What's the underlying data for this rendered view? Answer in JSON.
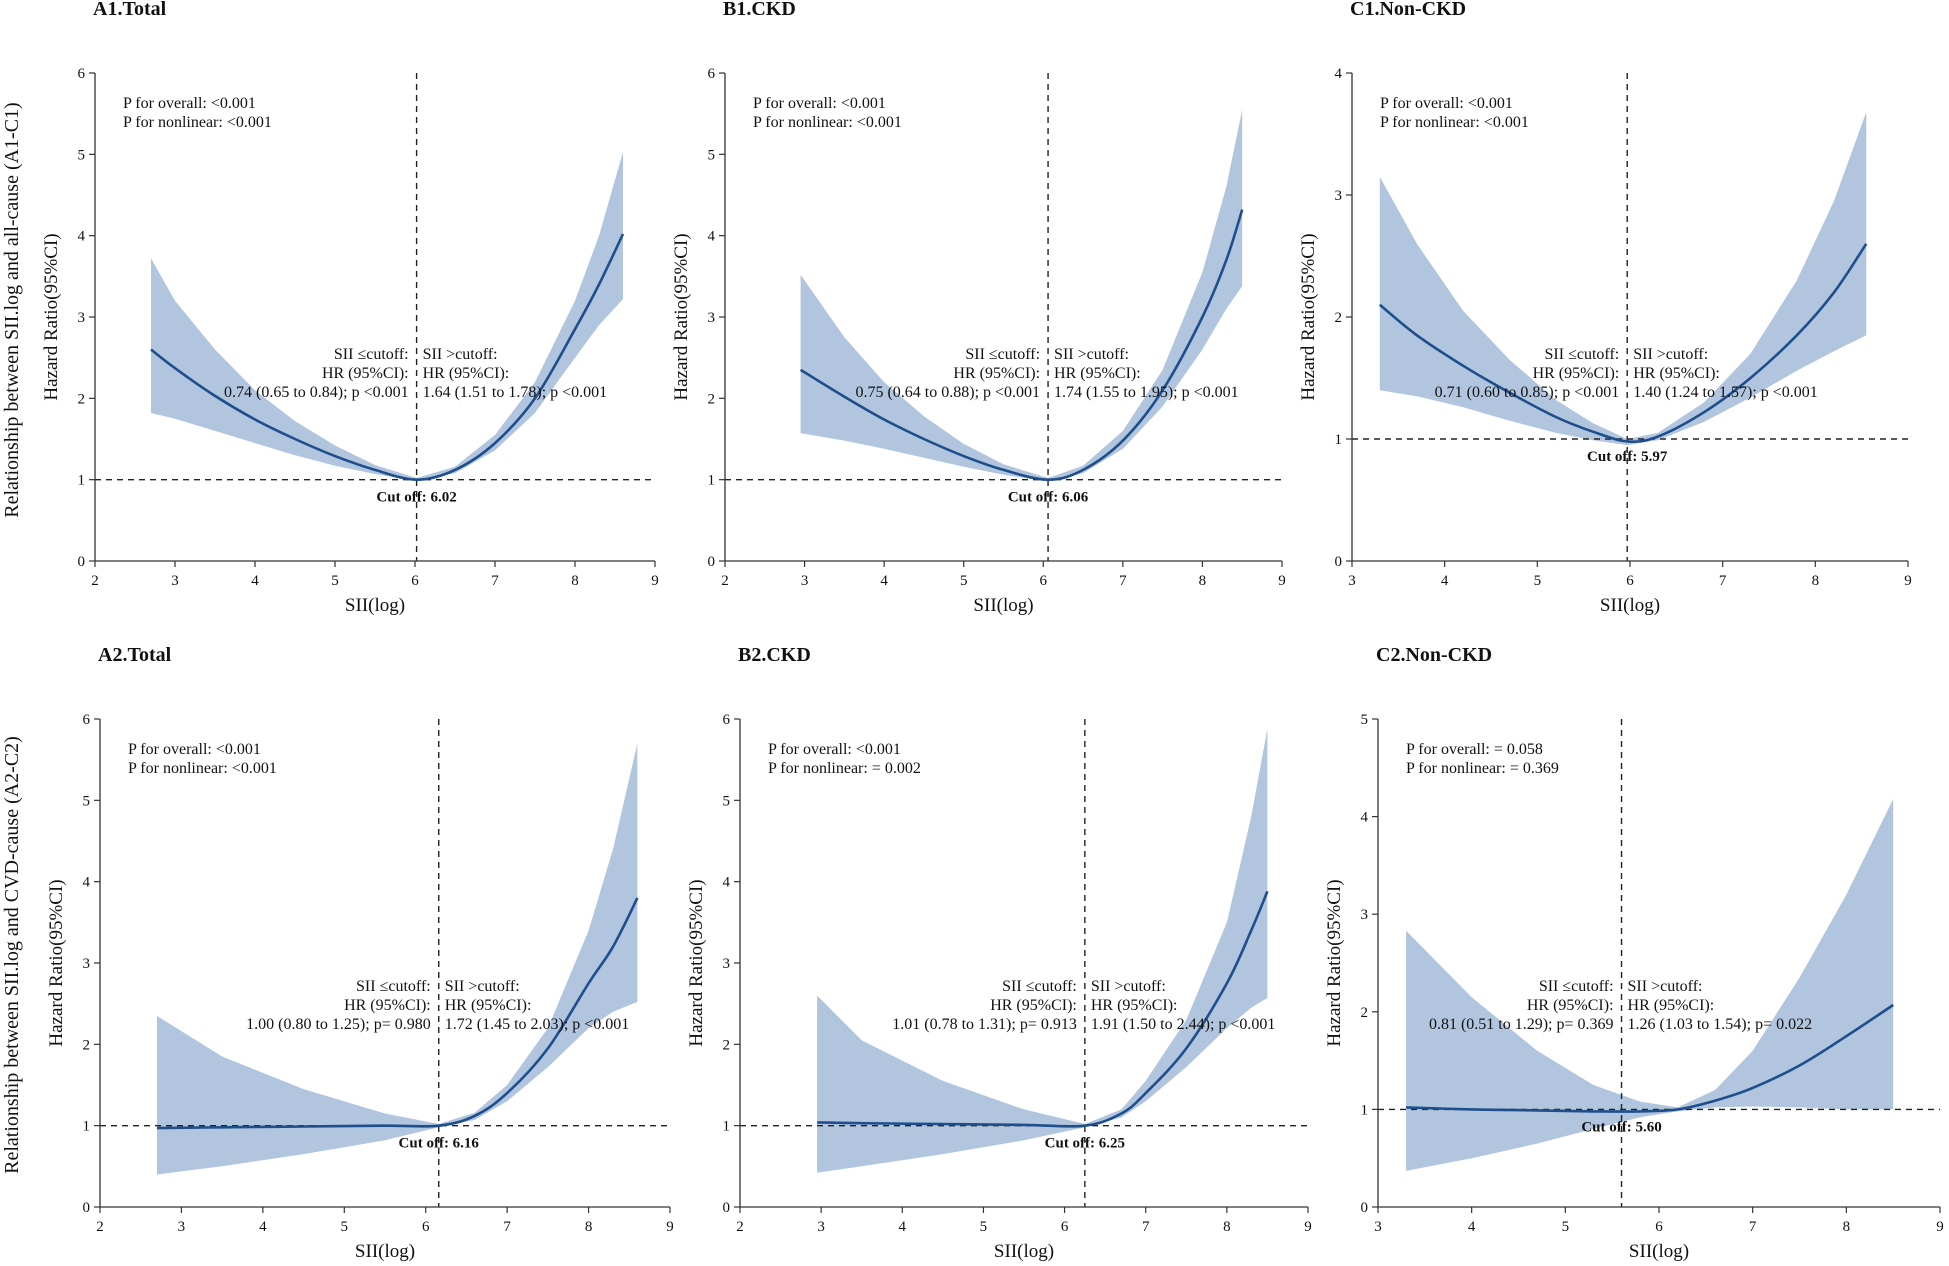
{
  "row_labels": {
    "top": "Relationship between SII.log and all-cause (A1-C1)",
    "bottom": "Relationship between SII.log and CVD-cause (A2-C2)"
  },
  "colors": {
    "band": "#b1c5de",
    "line": "#1f4e8c",
    "axis": "#333333"
  },
  "chart_data": [
    {
      "type": "line",
      "title": "A1.Total",
      "xlabel": "SII(log)",
      "ylabel": "Hazard Ratio(95%CI)",
      "xlim": [
        2,
        9
      ],
      "ylim": [
        0,
        6
      ],
      "xticks": [
        "2",
        "3",
        "4",
        "5",
        "6",
        "7",
        "8",
        "9"
      ],
      "yticks": [
        "0",
        "1",
        "2",
        "3",
        "4",
        "5",
        "6"
      ],
      "cutoff": 6.02,
      "cut_label": "Cut off: 6.02",
      "p_overall": "P for overall:  <0.001",
      "p_nonlinear": "P for nonlinear:  <0.001",
      "left_head": [
        "SII ≤cutoff:",
        "HR (95%CI):"
      ],
      "left_stat": "0.74 (0.65 to 0.84); p <0.001",
      "right_head": [
        "SII >cutoff:",
        "HR (95%CI):"
      ],
      "right_stat": "1.64 (1.51 to 1.78); p <0.001",
      "series": [
        {
          "name": "HR",
          "x": [
            2.7,
            3.0,
            3.5,
            4.0,
            4.5,
            5.0,
            5.5,
            6.02,
            6.5,
            7.0,
            7.5,
            8.0,
            8.3,
            8.6
          ],
          "y": [
            2.6,
            2.37,
            2.03,
            1.74,
            1.5,
            1.29,
            1.12,
            1.0,
            1.12,
            1.45,
            2.0,
            2.85,
            3.4,
            4.02
          ]
        },
        {
          "name": "Lower 95% CI",
          "x": [
            2.7,
            3.0,
            3.5,
            4.0,
            4.5,
            5.0,
            5.5,
            6.02,
            6.5,
            7.0,
            7.5,
            8.0,
            8.3,
            8.6
          ],
          "y": [
            1.82,
            1.75,
            1.6,
            1.45,
            1.3,
            1.17,
            1.07,
            0.98,
            1.08,
            1.36,
            1.82,
            2.5,
            2.9,
            3.22
          ]
        },
        {
          "name": "Upper 95% CI",
          "x": [
            2.7,
            3.0,
            3.5,
            4.0,
            4.5,
            5.0,
            5.5,
            6.02,
            6.5,
            7.0,
            7.5,
            8.0,
            8.3,
            8.6
          ],
          "y": [
            3.72,
            3.2,
            2.6,
            2.1,
            1.72,
            1.42,
            1.18,
            1.02,
            1.16,
            1.55,
            2.2,
            3.2,
            4.0,
            5.03
          ]
        }
      ]
    },
    {
      "type": "line",
      "title": "B1.CKD",
      "xlabel": "SII(log)",
      "ylabel": "Hazard Ratio(95%CI)",
      "xlim": [
        2,
        9
      ],
      "ylim": [
        0,
        6
      ],
      "xticks": [
        "2",
        "3",
        "4",
        "5",
        "6",
        "7",
        "8",
        "9"
      ],
      "yticks": [
        "0",
        "1",
        "2",
        "3",
        "4",
        "5",
        "6"
      ],
      "cutoff": 6.06,
      "cut_label": "Cut off: 6.06",
      "p_overall": "P for overall:  <0.001",
      "p_nonlinear": "P for nonlinear:  <0.001",
      "left_head": [
        "SII ≤cutoff:",
        "HR (95%CI):"
      ],
      "left_stat": "0.75 (0.64 to 0.88); p <0.001",
      "right_head": [
        "SII >cutoff:",
        "HR (95%CI):"
      ],
      "right_stat": "1.74 (1.55 to 1.95); p <0.001",
      "series": [
        {
          "name": "HR",
          "x": [
            2.95,
            3.5,
            4.0,
            4.5,
            5.0,
            5.5,
            6.06,
            6.5,
            7.0,
            7.5,
            8.0,
            8.3,
            8.5
          ],
          "y": [
            2.35,
            2.02,
            1.74,
            1.5,
            1.29,
            1.12,
            1.0,
            1.12,
            1.48,
            2.1,
            3.0,
            3.7,
            4.32
          ]
        },
        {
          "name": "Lower 95% CI",
          "x": [
            2.95,
            3.5,
            4.0,
            4.5,
            5.0,
            5.5,
            6.06,
            6.5,
            7.0,
            7.5,
            8.0,
            8.3,
            8.5
          ],
          "y": [
            1.57,
            1.48,
            1.38,
            1.27,
            1.16,
            1.06,
            0.98,
            1.08,
            1.38,
            1.9,
            2.6,
            3.1,
            3.38
          ]
        },
        {
          "name": "Upper 95% CI",
          "x": [
            2.95,
            3.5,
            4.0,
            4.5,
            5.0,
            5.5,
            6.06,
            6.5,
            7.0,
            7.5,
            8.0,
            8.3,
            8.5
          ],
          "y": [
            3.52,
            2.75,
            2.2,
            1.78,
            1.44,
            1.19,
            1.02,
            1.17,
            1.6,
            2.35,
            3.55,
            4.6,
            5.55
          ]
        }
      ]
    },
    {
      "type": "line",
      "title": "C1.Non-CKD",
      "xlabel": "SII(log)",
      "ylabel": "Hazard Ratio(95%CI)",
      "xlim": [
        3,
        9
      ],
      "ylim": [
        0,
        4
      ],
      "xticks": [
        "3",
        "4",
        "5",
        "6",
        "7",
        "8",
        "9"
      ],
      "yticks": [
        "0",
        "1",
        "2",
        "3",
        "4"
      ],
      "cutoff": 5.97,
      "cut_label": "Cut off: 5.97",
      "p_overall": "P for overall:  <0.001",
      "p_nonlinear": "P for nonlinear:  <0.001",
      "left_head": [
        "SII ≤cutoff:",
        "HR (95%CI):"
      ],
      "left_stat": "0.71 (0.60 to 0.85); p <0.001",
      "right_head": [
        "SII >cutoff:",
        "HR (95%CI):"
      ],
      "right_stat": "1.40 (1.24 to 1.57); p <0.001",
      "series": [
        {
          "name": "HR",
          "x": [
            3.3,
            3.7,
            4.2,
            4.7,
            5.2,
            5.6,
            5.97,
            6.3,
            6.8,
            7.3,
            7.8,
            8.2,
            8.55
          ],
          "y": [
            2.1,
            1.85,
            1.6,
            1.38,
            1.18,
            1.06,
            0.98,
            1.02,
            1.22,
            1.5,
            1.85,
            2.2,
            2.6
          ]
        },
        {
          "name": "Lower 95% CI",
          "x": [
            3.3,
            3.7,
            4.2,
            4.7,
            5.2,
            5.6,
            5.97,
            6.3,
            6.8,
            7.3,
            7.8,
            8.2,
            8.55
          ],
          "y": [
            1.4,
            1.35,
            1.26,
            1.15,
            1.05,
            0.99,
            0.95,
            0.99,
            1.14,
            1.34,
            1.56,
            1.72,
            1.85
          ]
        },
        {
          "name": "Upper 95% CI",
          "x": [
            3.3,
            3.7,
            4.2,
            4.7,
            5.2,
            5.6,
            5.97,
            6.3,
            6.8,
            7.3,
            7.8,
            8.2,
            8.55
          ],
          "y": [
            3.15,
            2.6,
            2.05,
            1.65,
            1.32,
            1.13,
            1.0,
            1.05,
            1.3,
            1.7,
            2.3,
            2.95,
            3.68
          ]
        }
      ]
    },
    {
      "type": "line",
      "title": "A2.Total",
      "xlabel": "SII(log)",
      "ylabel": "Hazard Ratio(95%CI)",
      "xlim": [
        2,
        9
      ],
      "ylim": [
        0,
        6
      ],
      "xticks": [
        "2",
        "3",
        "4",
        "5",
        "6",
        "7",
        "8",
        "9"
      ],
      "yticks": [
        "0",
        "1",
        "2",
        "3",
        "4",
        "5",
        "6"
      ],
      "cutoff": 6.16,
      "cut_label": "Cut off: 6.16",
      "p_overall": "P for overall:  <0.001",
      "p_nonlinear": "P for nonlinear:  <0.001",
      "left_head": [
        "SII ≤cutoff:",
        "HR (95%CI):"
      ],
      "left_stat": "1.00 (0.80 to 1.25); p= 0.980",
      "right_head": [
        "SII >cutoff:",
        "HR (95%CI):"
      ],
      "right_stat": "1.72 (1.45 to 2.03); p <0.001",
      "series": [
        {
          "name": "HR",
          "x": [
            2.7,
            3.5,
            4.5,
            5.5,
            6.16,
            6.6,
            7.0,
            7.5,
            8.0,
            8.3,
            8.6
          ],
          "y": [
            0.97,
            0.98,
            0.99,
            1.0,
            1.0,
            1.12,
            1.4,
            1.95,
            2.75,
            3.2,
            3.8
          ]
        },
        {
          "name": "Lower 95% CI",
          "x": [
            2.7,
            3.5,
            4.5,
            5.5,
            6.16,
            6.6,
            7.0,
            7.5,
            8.0,
            8.3,
            8.6
          ],
          "y": [
            0.4,
            0.5,
            0.65,
            0.82,
            0.98,
            1.07,
            1.3,
            1.72,
            2.2,
            2.4,
            2.52
          ]
        },
        {
          "name": "Upper 95% CI",
          "x": [
            2.7,
            3.5,
            4.5,
            5.5,
            6.16,
            6.6,
            7.0,
            7.5,
            8.0,
            8.3,
            8.6
          ],
          "y": [
            2.35,
            1.85,
            1.45,
            1.15,
            1.02,
            1.16,
            1.5,
            2.2,
            3.4,
            4.4,
            5.7
          ]
        }
      ]
    },
    {
      "type": "line",
      "title": "B2.CKD",
      "xlabel": "SII(log)",
      "ylabel": "Hazard Ratio(95%CI)",
      "xlim": [
        2,
        9
      ],
      "ylim": [
        0,
        6
      ],
      "xticks": [
        "2",
        "3",
        "4",
        "5",
        "6",
        "7",
        "8",
        "9"
      ],
      "yticks": [
        "0",
        "1",
        "2",
        "3",
        "4",
        "5",
        "6"
      ],
      "cutoff": 6.25,
      "cut_label": "Cut off: 6.25",
      "p_overall": "P for overall:  <0.001",
      "p_nonlinear": "P for nonlinear: = 0.002",
      "left_head": [
        "SII ≤cutoff:",
        "HR (95%CI):"
      ],
      "left_stat": "1.01 (0.78 to 1.31); p= 0.913",
      "right_head": [
        "SII >cutoff:",
        "HR (95%CI):"
      ],
      "right_stat": "1.91 (1.50 to 2.44); p <0.001",
      "series": [
        {
          "name": "HR",
          "x": [
            2.95,
            3.5,
            4.5,
            5.5,
            6.25,
            6.7,
            7.0,
            7.5,
            8.0,
            8.3,
            8.5
          ],
          "y": [
            1.04,
            1.03,
            1.02,
            1.01,
            1.0,
            1.15,
            1.4,
            1.95,
            2.75,
            3.4,
            3.88
          ]
        },
        {
          "name": "Lower 95% CI",
          "x": [
            2.95,
            3.5,
            4.5,
            5.5,
            6.25,
            6.7,
            7.0,
            7.5,
            8.0,
            8.3,
            8.5
          ],
          "y": [
            0.42,
            0.5,
            0.65,
            0.82,
            0.98,
            1.1,
            1.3,
            1.72,
            2.2,
            2.45,
            2.57
          ]
        },
        {
          "name": "Upper 95% CI",
          "x": [
            2.95,
            3.5,
            4.5,
            5.5,
            6.25,
            6.7,
            7.0,
            7.5,
            8.0,
            8.3,
            8.5
          ],
          "y": [
            2.6,
            2.05,
            1.55,
            1.2,
            1.02,
            1.2,
            1.55,
            2.3,
            3.5,
            4.8,
            5.88
          ]
        }
      ]
    },
    {
      "type": "line",
      "title": "C2.Non-CKD",
      "xlabel": "SII(log)",
      "ylabel": "Hazard Ratio(95%CI)",
      "xlim": [
        3,
        9
      ],
      "ylim": [
        0,
        5
      ],
      "xticks": [
        "3",
        "4",
        "5",
        "6",
        "7",
        "8",
        "9"
      ],
      "yticks": [
        "0",
        "1",
        "2",
        "3",
        "4",
        "5"
      ],
      "cutoff": 5.6,
      "cut_label": "Cut off: 5.60",
      "p_overall": "P for overall: = 0.058",
      "p_nonlinear": "P for nonlinear: = 0.369",
      "left_head": [
        "SII ≤cutoff:",
        "HR (95%CI):"
      ],
      "left_stat": "0.81 (0.51 to 1.29); p= 0.369",
      "right_head": [
        "SII >cutoff:",
        "HR (95%CI):"
      ],
      "right_stat": "1.26 (1.03 to 1.54); p= 0.022",
      "series": [
        {
          "name": "HR",
          "x": [
            3.3,
            4.0,
            4.7,
            5.3,
            5.8,
            6.2,
            6.6,
            7.0,
            7.5,
            8.0,
            8.5
          ],
          "y": [
            1.02,
            1.0,
            0.99,
            0.98,
            0.98,
            1.0,
            1.09,
            1.22,
            1.45,
            1.75,
            2.07
          ]
        },
        {
          "name": "Lower 95% CI",
          "x": [
            3.3,
            4.0,
            4.7,
            5.3,
            5.8,
            6.2,
            6.6,
            7.0,
            7.5,
            8.0,
            8.5
          ],
          "y": [
            0.37,
            0.5,
            0.65,
            0.8,
            0.92,
            0.98,
            1.02,
            1.03,
            1.02,
            1.0,
            1.0
          ]
        },
        {
          "name": "Upper 95% CI",
          "x": [
            3.3,
            4.0,
            4.7,
            5.3,
            5.8,
            6.2,
            6.6,
            7.0,
            7.5,
            8.0,
            8.5
          ],
          "y": [
            2.83,
            2.15,
            1.6,
            1.25,
            1.08,
            1.02,
            1.2,
            1.6,
            2.35,
            3.2,
            4.18
          ]
        }
      ]
    }
  ]
}
